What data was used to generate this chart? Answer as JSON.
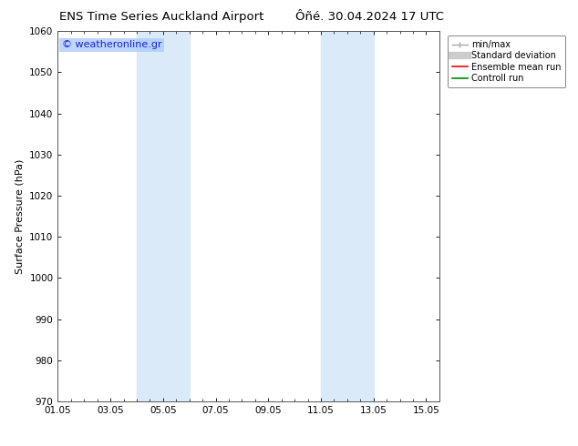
{
  "title_left": "ENS Time Series Auckland Airport",
  "title_right": "Ôñé. 30.04.2024 17 UTC",
  "ylabel": "Surface Pressure (hPa)",
  "ylim": [
    970,
    1060
  ],
  "yticks": [
    970,
    980,
    990,
    1000,
    1010,
    1020,
    1030,
    1040,
    1050,
    1060
  ],
  "xtick_labels": [
    "01.05",
    "03.05",
    "05.05",
    "07.05",
    "09.05",
    "11.05",
    "13.05",
    "15.05"
  ],
  "xtick_positions": [
    1,
    3,
    5,
    7,
    9,
    11,
    13,
    15
  ],
  "xlim": [
    1,
    15.5
  ],
  "shaded_bands": [
    {
      "xmin": 4.0,
      "xmax": 6.0
    },
    {
      "xmin": 11.0,
      "xmax": 13.0
    }
  ],
  "shaded_color": "#daeaf8",
  "watermark_text": "© weatheronline.gr",
  "watermark_color": "#2222cc",
  "watermark_bg": "#aaccff",
  "legend_entries": [
    {
      "label": "min/max"
    },
    {
      "label": "Standard deviation"
    },
    {
      "label": "Ensemble mean run"
    },
    {
      "label": "Controll run"
    }
  ],
  "legend_line_colors": [
    "#aaaaaa",
    "#cccccc",
    "#ff0000",
    "#008800"
  ],
  "bg_color": "#ffffff",
  "plot_bg_color": "#ffffff",
  "border_color": "#555555",
  "title_fontsize": 9.5,
  "ylabel_fontsize": 8,
  "tick_fontsize": 7.5,
  "legend_fontsize": 7,
  "watermark_fontsize": 8
}
